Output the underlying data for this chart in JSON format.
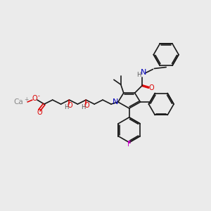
{
  "background_color": "#ebebeb",
  "bond_color": "#1a1a1a",
  "colors": {
    "N": "#0000bb",
    "O": "#dd0000",
    "F": "#cc00cc",
    "Ca": "#888888",
    "H": "#555555",
    "C": "#1a1a1a"
  }
}
